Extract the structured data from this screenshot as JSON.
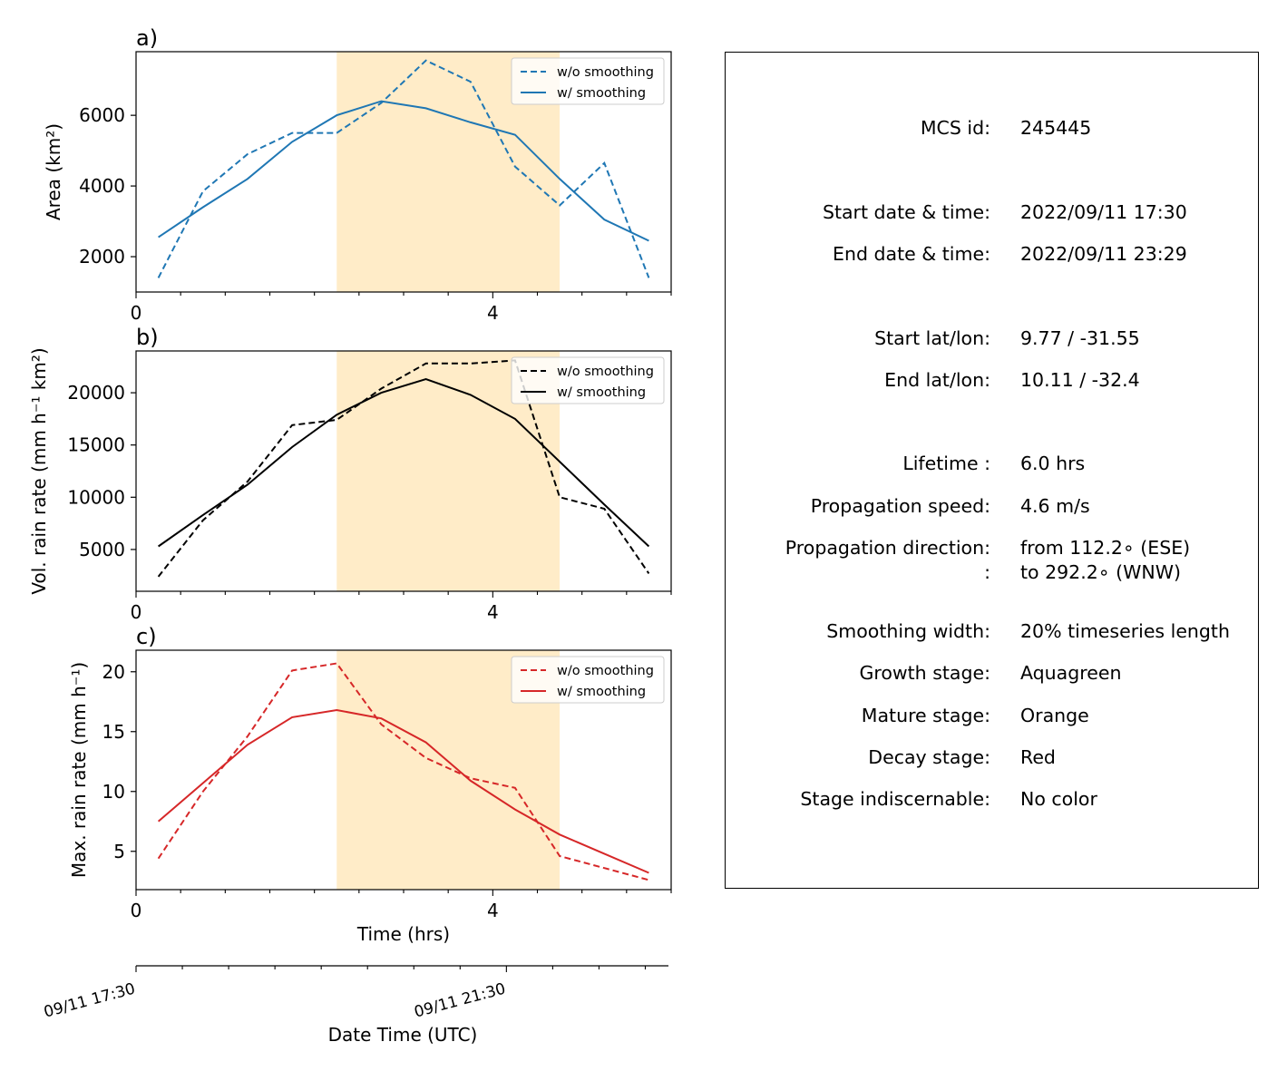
{
  "chart_data": [
    {
      "type": "line",
      "panel_label": "a)",
      "ylabel": "Area  (km²)",
      "x_ticks": [
        0,
        4
      ],
      "xlim": [
        0,
        6
      ],
      "ylim": [
        1000,
        7800
      ],
      "y_ticks": [
        2000,
        4000,
        6000
      ],
      "mature_span": [
        2.25,
        4.75
      ],
      "color": "#1f77b4",
      "legend": {
        "position": "top-right",
        "entries": [
          "w/o smoothing",
          "w/ smoothing"
        ]
      },
      "series": [
        {
          "name": "w/o smoothing",
          "style": "dashed",
          "x": [
            0.25,
            0.75,
            1.25,
            1.75,
            2.25,
            2.75,
            3.25,
            3.75,
            4.25,
            4.75,
            5.25,
            5.75
          ],
          "values": [
            1400,
            3850,
            4900,
            5500,
            5500,
            6350,
            7550,
            6950,
            4550,
            3450,
            4650,
            1400
          ]
        },
        {
          "name": "w/ smoothing",
          "style": "solid",
          "x": [
            0.25,
            0.75,
            1.25,
            1.75,
            2.25,
            2.75,
            3.25,
            3.75,
            4.25,
            4.75,
            5.25,
            5.75
          ],
          "values": [
            2550,
            3400,
            4200,
            5250,
            6000,
            6400,
            6200,
            5800,
            5450,
            4200,
            3050,
            2450
          ]
        }
      ]
    },
    {
      "type": "line",
      "panel_label": "b)",
      "ylabel": "Vol. rain rate (mm h⁻¹ km²)",
      "x_ticks": [
        0,
        4
      ],
      "xlim": [
        0,
        6
      ],
      "ylim": [
        1000,
        24000
      ],
      "y_ticks": [
        5000,
        10000,
        15000,
        20000
      ],
      "mature_span": [
        2.25,
        4.75
      ],
      "color": "#000000",
      "legend": {
        "position": "top-right",
        "entries": [
          "w/o smoothing",
          "w/ smoothing"
        ]
      },
      "series": [
        {
          "name": "w/o smoothing",
          "style": "dashed",
          "x": [
            0.25,
            0.75,
            1.25,
            1.75,
            2.25,
            2.75,
            3.25,
            3.75,
            4.25,
            4.75,
            5.25,
            5.75
          ],
          "values": [
            2400,
            7800,
            11500,
            16900,
            17400,
            20400,
            22800,
            22800,
            23100,
            10000,
            8900,
            2700
          ]
        },
        {
          "name": "w/ smoothing",
          "style": "solid",
          "x": [
            0.25,
            0.75,
            1.25,
            1.75,
            2.25,
            2.75,
            3.25,
            3.75,
            4.25,
            4.75,
            5.25,
            5.75
          ],
          "values": [
            5300,
            8300,
            11200,
            14800,
            17900,
            20000,
            21300,
            19800,
            17500,
            13400,
            9300,
            5300
          ]
        }
      ]
    },
    {
      "type": "line",
      "panel_label": "c)",
      "ylabel": "Max. rain rate  (mm h⁻¹)",
      "xlabel": "Time (hrs)",
      "x_ticks": [
        0,
        4
      ],
      "xlim": [
        0,
        6
      ],
      "ylim": [
        1.8,
        21.8
      ],
      "y_ticks": [
        5,
        10,
        15,
        20
      ],
      "mature_span": [
        2.25,
        4.75
      ],
      "color": "#d62728",
      "legend": {
        "position": "top-right",
        "entries": [
          "w/o smoothing",
          "w/ smoothing"
        ]
      },
      "series": [
        {
          "name": "w/o smoothing",
          "style": "dashed",
          "x": [
            0.25,
            0.75,
            1.25,
            1.75,
            2.25,
            2.75,
            3.25,
            3.75,
            4.25,
            4.75,
            5.25,
            5.75
          ],
          "values": [
            4.4,
            10.0,
            14.6,
            20.1,
            20.7,
            15.6,
            12.8,
            11.1,
            10.3,
            4.6,
            3.6,
            2.6
          ]
        },
        {
          "name": "w/ smoothing",
          "style": "solid",
          "x": [
            0.25,
            0.75,
            1.25,
            1.75,
            2.25,
            2.75,
            3.25,
            3.75,
            4.25,
            4.75,
            5.25,
            5.75
          ],
          "values": [
            7.5,
            10.7,
            13.9,
            16.2,
            16.8,
            16.1,
            14.1,
            10.9,
            8.5,
            6.4,
            4.8,
            3.2
          ]
        }
      ]
    }
  ],
  "date_axis": {
    "xlabel": "Date Time (UTC)",
    "ticks": [
      {
        "hours": 0,
        "label": "09/11 17:30"
      },
      {
        "hours": 4,
        "label": "09/11 21:30"
      }
    ]
  },
  "info": {
    "rows": [
      {
        "key": "MCS id:",
        "value": "245445"
      },
      {
        "key": "Start date & time:",
        "value": "2022/09/11 17:30"
      },
      {
        "key": "End date & time:",
        "value": "2022/09/11 23:29"
      },
      {
        "key": "Start lat/lon:",
        "value": "9.77 / -31.55"
      },
      {
        "key": "End lat/lon:",
        "value": "10.11 / -32.4"
      },
      {
        "key": "Lifetime :",
        "value": "6.0 hrs"
      },
      {
        "key": "Propagation speed:",
        "value": "4.6 m/s"
      },
      {
        "key": "Propagation direction:",
        "value": "from 112.2∘ (ESE)"
      },
      {
        "key": ":",
        "value": "to   292.2∘ (WNW)"
      },
      {
        "key": "Smoothing width:",
        "value": "20% timeseries length"
      },
      {
        "key": "Growth stage:",
        "value": "Aquagreen"
      },
      {
        "key": "Mature stage:",
        "value": "Orange"
      },
      {
        "key": "Decay stage:",
        "value": "Red"
      },
      {
        "key": "Stage indiscernable:",
        "value": "No color"
      }
    ]
  },
  "colors": {
    "mature_shade": "#ffecc8",
    "axes": "#000000"
  }
}
